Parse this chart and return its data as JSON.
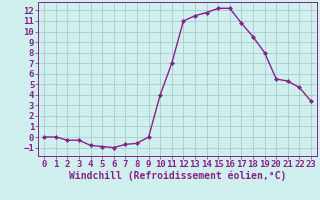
{
  "x": [
    0,
    1,
    2,
    3,
    4,
    5,
    6,
    7,
    8,
    9,
    10,
    11,
    12,
    13,
    14,
    15,
    16,
    17,
    18,
    19,
    20,
    21,
    22,
    23
  ],
  "y": [
    0,
    0,
    -0.3,
    -0.3,
    -0.8,
    -0.9,
    -1.0,
    -0.7,
    -0.6,
    0,
    4,
    7,
    11,
    11.5,
    11.8,
    12.2,
    12.2,
    10.8,
    9.5,
    8,
    5.5,
    5.3,
    4.7,
    3.4
  ],
  "line_color": "#882288",
  "marker": "D",
  "marker_size": 2,
  "bg_color": "#d0f0f0",
  "grid_color": "#aacccc",
  "xlabel": "Windchill (Refroidissement éolien,°C)",
  "xlabel_color": "#882288",
  "tick_color": "#882288",
  "axis_color": "#882288",
  "ylim": [
    -1.8,
    12.8
  ],
  "xlim": [
    -0.5,
    23.5
  ],
  "yticks": [
    -1,
    0,
    1,
    2,
    3,
    4,
    5,
    6,
    7,
    8,
    9,
    10,
    11,
    12
  ],
  "xticks": [
    0,
    1,
    2,
    3,
    4,
    5,
    6,
    7,
    8,
    9,
    10,
    11,
    12,
    13,
    14,
    15,
    16,
    17,
    18,
    19,
    20,
    21,
    22,
    23
  ],
  "font_size": 6.5,
  "xlabel_fontsize": 7,
  "line_width": 1.0
}
